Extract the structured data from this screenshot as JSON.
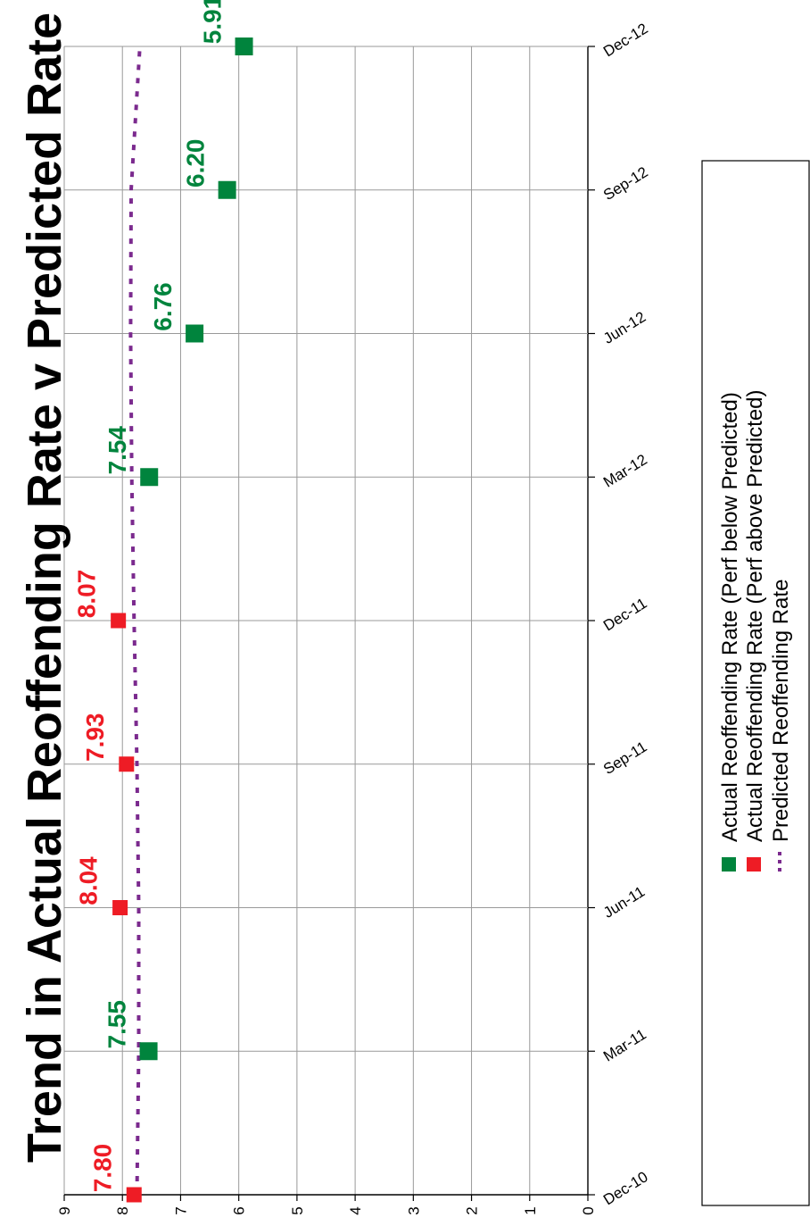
{
  "chart_data": {
    "type": "scatter",
    "title": "Trend in Actual Reoffending Rate v Predicted Rate",
    "x": [
      "Dec-10",
      "Mar-11",
      "Jun-11",
      "Sep-11",
      "Dec-11",
      "Mar-12",
      "Jun-12",
      "Sep-12",
      "Dec-12"
    ],
    "ylim": [
      0,
      9
    ],
    "yticks": [
      "0",
      "1",
      "2",
      "3",
      "4",
      "5",
      "6",
      "7",
      "8",
      "9"
    ],
    "grid": true,
    "legend_position": "right",
    "series": [
      {
        "name": "Actual Reoffending Rate (Perf below Predicted)",
        "color": "#00843d",
        "marker": "square",
        "points": [
          {
            "x": "Mar-11",
            "y": 7.55,
            "label": "7.55"
          },
          {
            "x": "Mar-12",
            "y": 7.54,
            "label": "7.54"
          },
          {
            "x": "Jun-12",
            "y": 6.76,
            "label": "6.76"
          },
          {
            "x": "Sep-12",
            "y": 6.2,
            "label": "6.20"
          },
          {
            "x": "Dec-12",
            "y": 5.91,
            "label": "5.91"
          }
        ]
      },
      {
        "name": "Actual Reoffending Rate (Perf above Predicted)",
        "color": "#ee1c25",
        "marker": "square",
        "points": [
          {
            "x": "Dec-10",
            "y": 7.8,
            "label": "7.80"
          },
          {
            "x": "Jun-11",
            "y": 8.04,
            "label": "8.04"
          },
          {
            "x": "Sep-11",
            "y": 7.93,
            "label": "7.93"
          },
          {
            "x": "Dec-11",
            "y": 8.07,
            "label": "8.07"
          }
        ]
      },
      {
        "name": "Predicted Reoffending Rate",
        "color": "#7b2a8e",
        "style": "dotted-line",
        "points": [
          {
            "x": "Dec-10",
            "y": 7.75
          },
          {
            "x": "Mar-11",
            "y": 7.72
          },
          {
            "x": "Jun-11",
            "y": 7.72
          },
          {
            "x": "Sep-11",
            "y": 7.75
          },
          {
            "x": "Dec-11",
            "y": 7.8
          },
          {
            "x": "Mar-12",
            "y": 7.84
          },
          {
            "x": "Jun-12",
            "y": 7.86
          },
          {
            "x": "Sep-12",
            "y": 7.85
          },
          {
            "x": "Dec-12",
            "y": 7.7
          }
        ]
      }
    ]
  }
}
